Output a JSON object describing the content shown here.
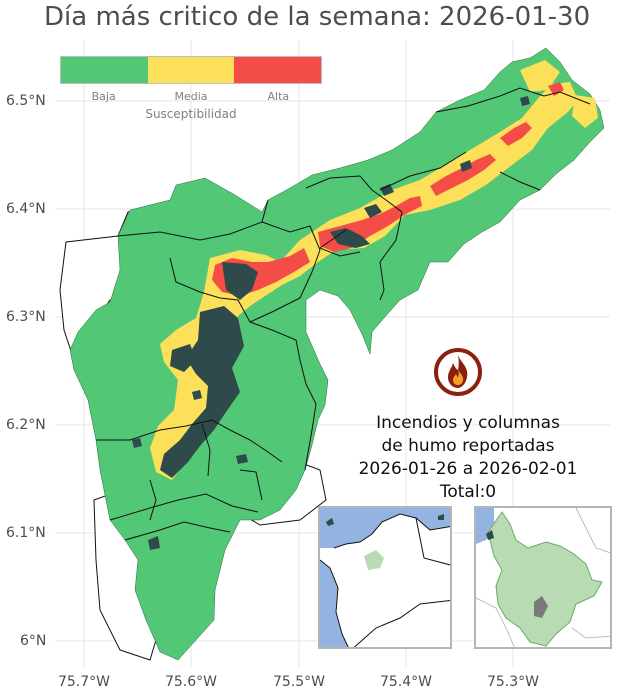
{
  "title": "Día más critico de la semana: 2026-01-30",
  "legend": {
    "title": "Susceptibilidad",
    "items": [
      {
        "label": "Baja",
        "color": "#52c776"
      },
      {
        "label": "Media",
        "color": "#fde05a"
      },
      {
        "label": "Alta",
        "color": "#f44d47"
      }
    ]
  },
  "axes": {
    "y_ticks": [
      "6.5°N",
      "6.4°N",
      "6.3°N",
      "6.2°N",
      "6.1°N",
      "6°N"
    ],
    "x_ticks": [
      "75.7°W",
      "75.6°W",
      "75.5°W",
      "75.4°W",
      "75.3°W"
    ]
  },
  "fire_info": {
    "line1": "Incendios y columnas",
    "line2": "de humo reportadas",
    "line3": "2026-01-26 a 2026-02-01",
    "line4": "Total:0"
  },
  "colors": {
    "low": "#52c776",
    "medium": "#fde05a",
    "high": "#f44d47",
    "urban": "#2e4a4a",
    "ocean": "#93b4e0",
    "inset_region": "#b8dbb4",
    "fire_icon": "#8b2010"
  },
  "icons": [
    "fire-icon"
  ]
}
